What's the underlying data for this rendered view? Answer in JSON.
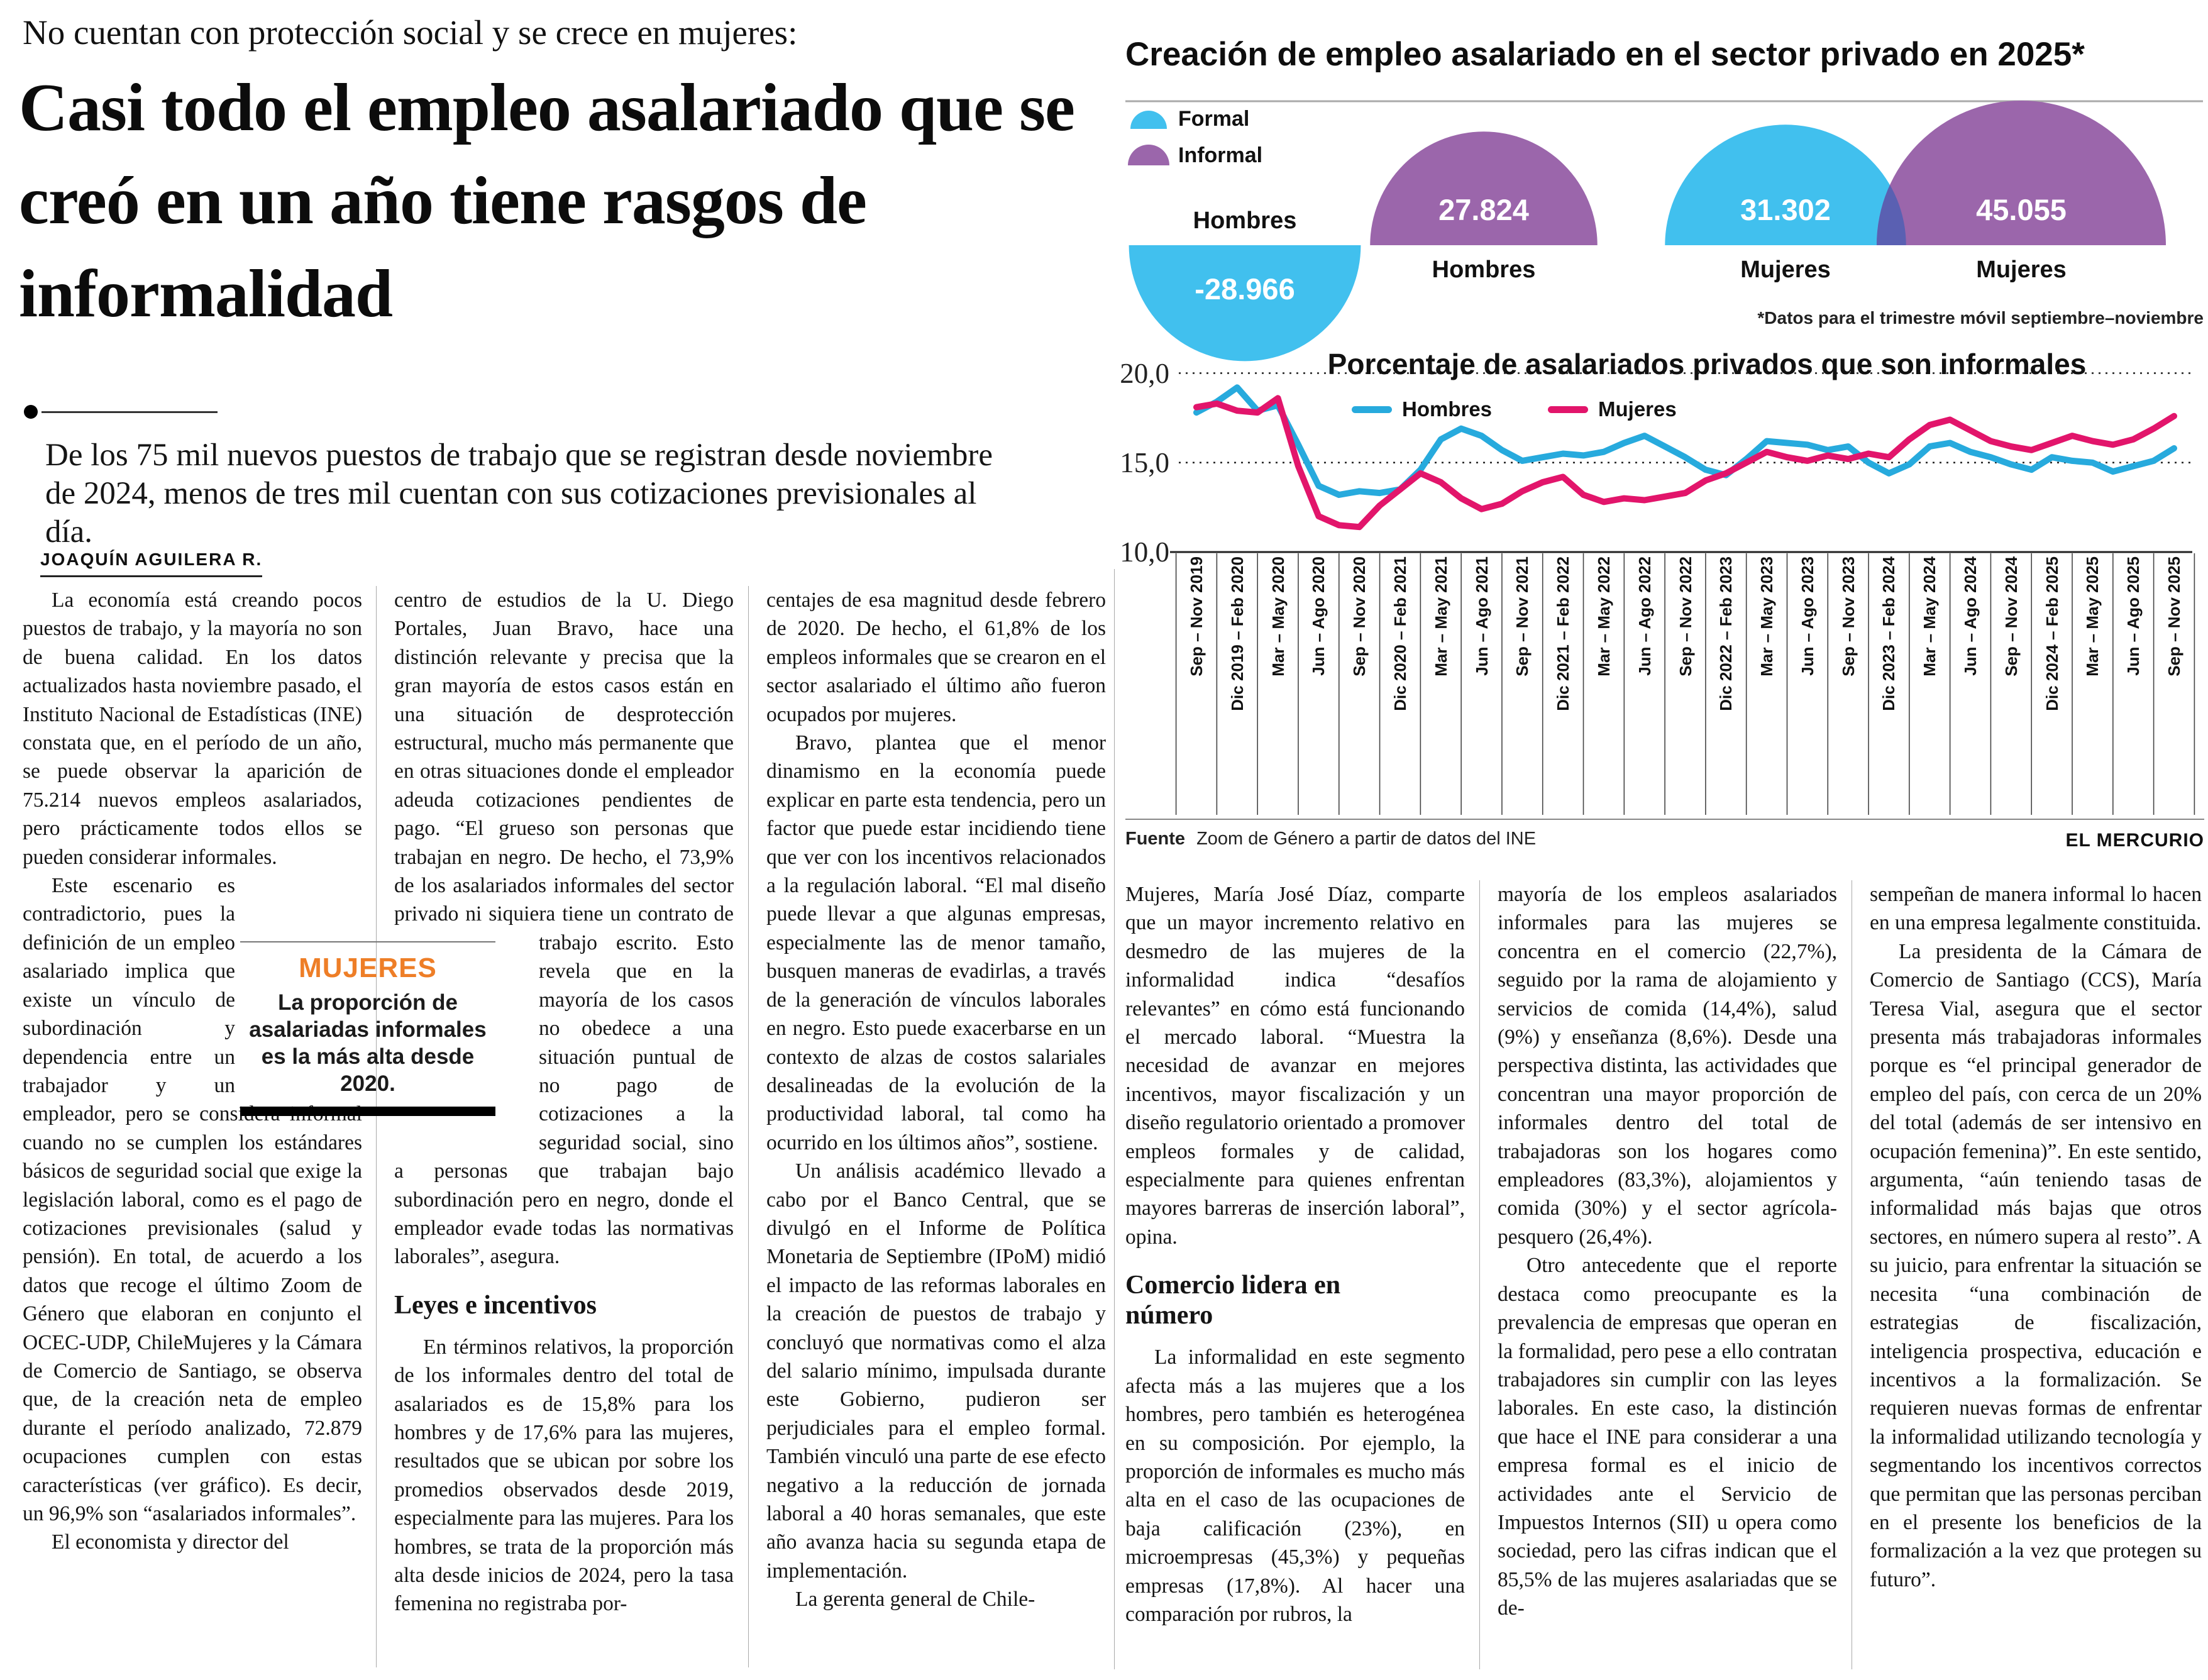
{
  "page": {
    "brand": "EL MERCURIO"
  },
  "article": {
    "kicker": "No cuentan con protección social y se crece en mujeres:",
    "headline": "Casi todo el empleo asalariado que se creó en un año tiene rasgos de informalidad",
    "lead": "De los 75 mil nuevos puestos de trabajo que se registran desde noviembre de 2024, menos de tres mil cuentan con sus cotizaciones previsionales al día.",
    "byline": "JOAQUÍN AGUILERA R.",
    "highlight_box": {
      "kicker": "MUJERES",
      "text": "La proporción de asalariadas informales es la más alta desde 2020."
    },
    "columns": [
      [
        {
          "t": "p",
          "i": true,
          "x": "La economía está creando pocos puestos de trabajo, y la mayoría no son de buena calidad. En los datos actualizados hasta noviembre pasado, el Instituto Nacional de Estadísticas (INE) constata que, en el período de un año, se puede observar la aparición de 75.214 nuevos empleos asalariados, pero prácticamente todos ellos se pueden considerar informales."
        },
        {
          "t": "pw",
          "i": true,
          "side": "right",
          "pre": "",
          "post": "Este escenario es contradictorio, pues la definición de un empleo asalariado implica que existe un vínculo de subordinación y dependencia entre un trabajador y un empleador, pero se considera informal cuando no se cumplen los estándares básicos de seguridad social que exige la legislación laboral, como es el pago de cotizaciones previsionales (salud y pensión). En total, de acuerdo a los datos que recoge el último Zoom de Género que elaboran en conjunto el OCEC-UDP, ChileMujeres y la Cámara de Comercio de Santiago, se observa que, de la creación neta de empleo durante el período analizado, 72.879 ocupaciones cumplen con estas características (ver gráfico). Es decir, un 96,9% son “asalariados informales”."
        },
        {
          "t": "p",
          "i": true,
          "x": "El economista y director del"
        }
      ],
      [
        {
          "t": "pw",
          "i": false,
          "side": "left",
          "pre": "centro de estudios de la U. Diego Portales, Juan Bravo, hace una distinción relevante y precisa que la gran mayoría de estos casos están en una situación de desprotección estructural, mucho más permanente que en otras situaciones donde el empleador adeuda cotizaciones pendientes de pago. “El grueso son personas que trabajan en negro. De hecho, el 73,9% de los asalariados informales del sector privado ni siquiera tiene un",
          "post": "contrato de trabajo escrito. Esto revela que en la mayoría de los casos no obedece a una situación puntual de no pago de cotizaciones a la seguridad social, sino a personas que trabajan bajo subordinación pero en negro, donde el empleador evade todas las normativas laborales”, asegura."
        },
        {
          "t": "h",
          "x": "Leyes e incentivos"
        },
        {
          "t": "p",
          "i": true,
          "x": "En términos relativos, la proporción de los informales dentro del total de asalariados es de 15,8% para los hombres y de 17,6% para las mujeres, resultados que se ubican por sobre los promedios observados desde 2019, especialmente para las mujeres. Para los hombres, se trata de la proporción más alta desde inicios de 2024, pero la tasa femenina no registraba por-"
        }
      ],
      [
        {
          "t": "p",
          "i": false,
          "x": "centajes de esa magnitud desde febrero de 2020. De hecho, el 61,8% de los empleos informales que se crearon en el sector asalariado el último año fueron ocupados por mujeres."
        },
        {
          "t": "p",
          "i": true,
          "x": "Bravo, plantea que el menor dinamismo en la economía puede explicar en parte esta tendencia, pero un factor que puede estar incidiendo tiene que ver con los incentivos relacionados a la regulación laboral. “El mal diseño puede llevar a que algunas empresas, especialmente las de menor tamaño, busquen maneras de evadirlas, a través de la generación de vínculos laborales en negro. Esto puede exacerbarse en un contexto de alzas de costos salariales desalineadas de la evolución de la productividad laboral, tal como ha ocurrido en los últimos años”, sostiene."
        },
        {
          "t": "p",
          "i": true,
          "x": "Un análisis académico llevado a cabo por el Banco Central, que se divulgó en el Informe de Política Monetaria de Septiembre (IPoM) midió el impacto de las reformas laborales en la creación de puestos de trabajo y concluyó que normativas como el alza del salario mínimo, impulsada durante este Gobierno, pudieron ser perjudiciales para el empleo formal. También vinculó una parte de ese efecto negativo a la reducción de jornada laboral a 40 horas semanales, que este año avanza hacia su segunda etapa de implementación."
        },
        {
          "t": "p",
          "i": true,
          "x": "La gerenta general de Chile-"
        }
      ],
      [
        {
          "t": "p",
          "i": false,
          "x": "Mujeres, María José Díaz, comparte que un mayor incremento relativo en desmedro de las mujeres de la informalidad indica “desafíos relevantes” en cómo está funcionando el mercado laboral. “Muestra la necesidad de avanzar en mejores incentivos, mayor fiscalización y un diseño regulatorio orientado a promover empleos formales y de calidad, especialmente para quienes enfrentan mayores barreras de inserción laboral”, opina."
        },
        {
          "t": "h",
          "x": "Comercio lidera en número"
        },
        {
          "t": "p",
          "i": true,
          "x": "La informalidad en este segmento afecta más a las mujeres que a los hombres, pero también es heterogénea en su composición. Por ejemplo, la proporción de informales es mucho más alta en el caso de las ocupaciones de baja calificación (23%), en microempresas (45,3%) y pequeñas empresas (17,8%). Al hacer una comparación por rubros, la"
        }
      ],
      [
        {
          "t": "p",
          "i": false,
          "x": "mayoría de los empleos asalariados informales para las mujeres se concentra en el comercio (22,7%), seguido por la rama de alojamiento y servicios de comida (14,4%), salud (9%) y enseñanza (8,6%). Desde una perspectiva distinta, las actividades que concentran una mayor proporción de informales dentro del total de trabajadoras son los hogares como empleadores (83,3%), alojamientos y comida (30%) y el sector agrícola-pesquero (26,4%)."
        },
        {
          "t": "p",
          "i": true,
          "x": "Otro antecedente que el reporte destaca como preocupante es la prevalencia de empresas que operan en la formalidad, pero pese a ello contratan trabajadores sin cumplir con las leyes laborales. En este caso, la distinción que hace el INE para considerar a una empresa formal es el inicio de actividades ante el Servicio de Impuestos Internos (SII) u opera como sociedad, pero las cifras indican que el 85,5% de las mujeres asalariadas que se de-"
        }
      ],
      [
        {
          "t": "p",
          "i": false,
          "x": "sempeñan de manera informal lo hacen en una empresa legalmente constituida."
        },
        {
          "t": "p",
          "i": true,
          "x": "La presidenta de la Cámara de Comercio de Santiago (CCS), María Teresa Vial, asegura que el sector presenta más trabajadoras informales porque es “el principal generador de empleo del país, con cerca de un 20% del total (además de ser intensivo en ocupación femenina)”. En este sentido, argumenta, “aún teniendo tasas de informalidad más bajas que otros sectores, en número supera al resto”. A su juicio, para enfrentar la situación se necesita “una combinación de estrategias de fiscalización, inteligencia prospectiva, educación e incentivos a la formalización. Se requieren nuevas formas de enfrentar la informalidad utilizando tecnología y segmentando los incentivos correctos que permitan que las personas perciban en el presente los beneficios de la formalización a la vez que protegen su futuro”."
        }
      ]
    ]
  },
  "infographic": {
    "title": "Creación de empleo asalariado en el sector privado en 2025*",
    "footnote": "*Datos para el trimestre móvil septiembre–noviembre",
    "source_label": "Fuente",
    "source": "Zoom de Género a partir de datos del INE",
    "colors": {
      "formal_blue": "#41c0ee",
      "informal_purple": "#9b66ab",
      "overlap_indigo": "#5a60b2",
      "line_hombres": "#27aadd",
      "line_mujeres": "#e2156b",
      "highlight_orange": "#ee7e27"
    },
    "legend": [
      {
        "label": "Formal",
        "color": "#41c0ee"
      },
      {
        "label": "Informal",
        "color": "#9b66ab"
      }
    ],
    "bubbles": [
      {
        "group": "Hombres",
        "type": "Formal",
        "value": -28966,
        "value_label": "-28.966",
        "color": "#41c0ee"
      },
      {
        "group": "Hombres",
        "type": "Informal",
        "value": 27824,
        "value_label": "27.824",
        "color": "#9b66ab"
      },
      {
        "group": "Mujeres",
        "type": "Formal",
        "value": 31302,
        "value_label": "31.302",
        "color": "#41c0ee"
      },
      {
        "group": "Mujeres",
        "type": "Informal",
        "value": 45055,
        "value_label": "45.055",
        "color": "#9b66ab"
      }
    ],
    "chart_data": {
      "type": "line",
      "title": "Porcentaje de asalariados privados que son informales",
      "ylabel": "",
      "xlabel": "",
      "ylim": [
        10,
        20.8
      ],
      "grid": "dotted horizontal lines at 20.0 and 15.0; solid axis at 10.0",
      "legend_position": "inside top",
      "yticks": [
        {
          "label": "20,0",
          "value": 20,
          "style": "dotted"
        },
        {
          "label": "15,0",
          "value": 15,
          "style": "dotted"
        },
        {
          "label": "10,0",
          "value": 10,
          "style": "axis"
        }
      ],
      "x_labels": [
        "Sep – Nov 2019",
        "Dic 2019 – Feb 2020",
        "Mar – May 2020",
        "Jun – Ago 2020",
        "Sep – Nov 2020",
        "Dic 2020 – Feb 2021",
        "Mar – May 2021",
        "Jun – Ago 2021",
        "Sep – Nov 2021",
        "Dic 2021 – Feb 2022",
        "Mar – May 2022",
        "Jun – Ago 2022",
        "Sep – Nov 2022",
        "Dic 2022 – Feb 2023",
        "Mar – May 2023",
        "Jun – Ago 2023",
        "Sep – Nov 2023",
        "Dic 2023 – Feb 2024",
        "Mar – May 2024",
        "Jun – Ago 2024",
        "Sep – Nov 2024",
        "Dic 2024 – Feb 2025",
        "Mar – May 2025",
        "Jun – Ago 2025",
        "Sep – Nov 2025"
      ],
      "points_per_label_interval": 2,
      "series": [
        {
          "name": "Hombres",
          "color": "#27aadd",
          "values": [
            17.8,
            18.4,
            19.2,
            17.9,
            18.2,
            16.0,
            13.7,
            13.2,
            13.4,
            13.3,
            13.5,
            14.6,
            16.3,
            16.9,
            16.5,
            15.7,
            15.1,
            15.3,
            15.5,
            15.4,
            15.6,
            16.1,
            16.5,
            15.9,
            15.3,
            14.6,
            14.3,
            15.2,
            16.2,
            16.1,
            16.0,
            15.7,
            15.9,
            15.0,
            14.4,
            14.9,
            15.9,
            16.1,
            15.6,
            15.3,
            14.9,
            14.6,
            15.3,
            15.1,
            15.0,
            14.5,
            14.8,
            15.1,
            15.8
          ]
        },
        {
          "name": "Mujeres",
          "color": "#e2156b",
          "values": [
            18.1,
            18.3,
            17.9,
            17.8,
            18.6,
            14.8,
            12.0,
            11.5,
            11.4,
            12.6,
            13.5,
            14.4,
            13.9,
            13.0,
            12.4,
            12.7,
            13.4,
            13.9,
            14.2,
            13.2,
            12.8,
            13.0,
            12.9,
            13.1,
            13.3,
            14.0,
            14.4,
            15.0,
            15.6,
            15.3,
            15.1,
            15.4,
            15.2,
            15.5,
            15.3,
            16.3,
            17.1,
            17.4,
            16.8,
            16.2,
            15.9,
            15.7,
            16.1,
            16.5,
            16.2,
            16.0,
            16.3,
            16.9,
            17.6
          ]
        }
      ]
    }
  }
}
